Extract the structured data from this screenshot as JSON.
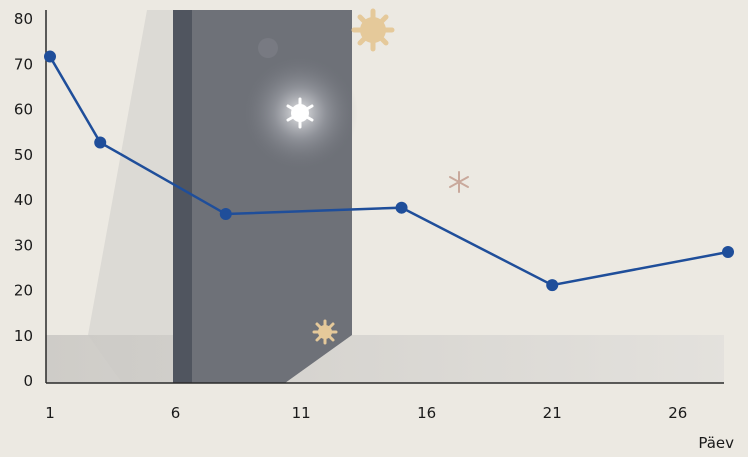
{
  "chart_data": {
    "type": "line",
    "x": [
      1,
      3,
      8,
      15,
      21,
      28
    ],
    "values": [
      71.7,
      52.7,
      36.9,
      38.3,
      21.2,
      28.5
    ],
    "xlim": [
      1,
      28
    ],
    "ylim": [
      0,
      80
    ],
    "xticks": [
      "1",
      "6",
      "11",
      "16",
      "21",
      "26"
    ],
    "yticks": [
      "0",
      "10",
      "20",
      "30",
      "40",
      "50",
      "60",
      "70",
      "80"
    ],
    "xlabel": "Päev",
    "ylabel": "",
    "grid": false,
    "colors": {
      "line": "#1f4e9a",
      "background": "#ece9e2",
      "band": "#6e7178"
    }
  }
}
